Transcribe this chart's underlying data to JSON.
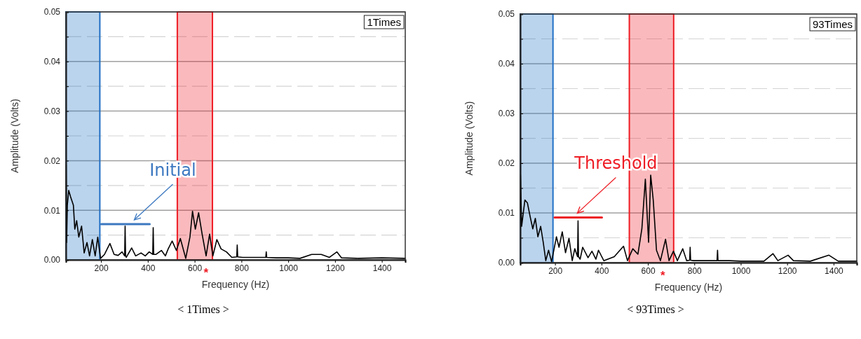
{
  "chart_data": [
    {
      "type": "line",
      "title": "< 1Times >",
      "subtitle": "1Times",
      "xlabel": "Frequency (Hz)",
      "ylabel": "Amplitude (Volts)",
      "xlim": [
        50,
        1500
      ],
      "ylim": [
        0,
        0.05
      ],
      "xticks": [
        200,
        400,
        600,
        800,
        1000,
        1200,
        1400
      ],
      "yticks": [
        {
          "value": 0,
          "label": "0.00"
        },
        {
          "value": 0.005,
          "label": null
        },
        {
          "value": 0.01,
          "label": "0.01"
        },
        {
          "value": 0.015,
          "label": null
        },
        {
          "value": 0.02,
          "label": "0.02"
        },
        {
          "value": 0.025,
          "label": null
        },
        {
          "value": 0.03,
          "label": "0.03"
        },
        {
          "value": 0.035,
          "label": null
        },
        {
          "value": 0.04,
          "label": "0.04"
        },
        {
          "value": 0.045,
          "label": null
        },
        {
          "value": 0.05,
          "label": "0.05"
        }
      ],
      "grid": "y",
      "series": [
        {
          "color": "#000000",
          "x": [
            50,
            51,
            53,
            56,
            62,
            70,
            82,
            88,
            96,
            105,
            117,
            128,
            140,
            151,
            163,
            175,
            186,
            198,
            215,
            238,
            256,
            273,
            290,
            301,
            303,
            305,
            308,
            331,
            348,
            371,
            389,
            406,
            421,
            423,
            425,
            435,
            458,
            475,
            487,
            504,
            522,
            539,
            562,
            580,
            591,
            603,
            617,
            632,
            649,
            664,
            678,
            695,
            713,
            736,
            759,
            780,
            782,
            784,
            805,
            904,
            906,
            908,
            950,
            1000,
            1050,
            1100,
            1141,
            1176,
            1208,
            1228,
            1300,
            1400,
            1500
          ],
          "values": [
            0.012,
            0.0191,
            0.0035,
            0.011,
            0.014,
            0.0127,
            0.011,
            0.0062,
            0.0079,
            0.0046,
            0.0068,
            0.0014,
            0.0035,
            0.0008,
            0.0041,
            0.0008,
            0.0046,
            0.0003,
            0.0011,
            0.0033,
            0.0011,
            0.0009,
            0.0016,
            0.0008,
            0.0068,
            0.0008,
            0.0005,
            0.0024,
            0.0008,
            0.0014,
            0.0008,
            0.0016,
            0.0011,
            0.0065,
            0.0011,
            0.0011,
            0.0019,
            0.0008,
            0.0022,
            0.0038,
            0.0019,
            0.0043,
            0.0003,
            0.0046,
            0.0098,
            0.0062,
            0.0095,
            0.0052,
            0.0008,
            0.0052,
            0.0008,
            0.0041,
            0.0022,
            0.0016,
            0.0005,
            0.0006,
            0.003,
            0.0006,
            0.0005,
            0.0005,
            0.0016,
            0.0005,
            0.0004,
            0.0004,
            0.0003,
            0.0011,
            0.0011,
            0.0005,
            0.0016,
            0.0004,
            0.0003,
            0.0004,
            0.0003
          ]
        },
        {
          "color": "#3c78c0",
          "x": [
            201,
            408
          ],
          "values": [
            0.0072,
            0.0072
          ]
        }
      ],
      "bands": [
        {
          "axis": "x",
          "from": 50,
          "to": 195,
          "color": "#1f6fc5"
        },
        {
          "axis": "x",
          "from": 526,
          "to": 676,
          "color": "#ee1c24"
        }
      ],
      "annotations": [
        {
          "text": "Initial",
          "x": 342,
          "y": 0.0072
        },
        "*"
      ]
    },
    {
      "type": "line",
      "title": "< 93Times >",
      "subtitle": "93Times",
      "xlabel": "Frequency (Hz)",
      "ylabel": "Amplitude (Volts)",
      "xlim": [
        50,
        1500
      ],
      "ylim": [
        0,
        0.05
      ],
      "xticks": [
        200,
        400,
        600,
        800,
        1000,
        1200,
        1400
      ],
      "yticks": [
        {
          "value": 0,
          "label": "0.00"
        },
        {
          "value": 0.005,
          "label": null
        },
        {
          "value": 0.01,
          "label": "0.01"
        },
        {
          "value": 0.015,
          "label": null
        },
        {
          "value": 0.02,
          "label": "0.02"
        },
        {
          "value": 0.025,
          "label": null
        },
        {
          "value": 0.03,
          "label": "0.03"
        },
        {
          "value": 0.035,
          "label": null
        },
        {
          "value": 0.04,
          "label": "0.04"
        },
        {
          "value": 0.045,
          "label": null
        },
        {
          "value": 0.05,
          "label": "0.05"
        }
      ],
      "grid": "y",
      "series": [
        {
          "color": "#000000",
          "x": [
            50,
            51,
            56,
            70,
            81,
            92,
            104,
            115,
            126,
            138,
            149,
            160,
            172,
            185,
            206,
            217,
            231,
            245,
            260,
            274,
            285,
            297,
            299,
            301,
            308,
            319,
            342,
            359,
            376,
            387,
            410,
            455,
            495,
            512,
            535,
            557,
            574,
            589,
            597,
            603,
            612,
            623,
            637,
            654,
            676,
            691,
            710,
            727,
            750,
            767,
            780,
            782,
            784,
            796,
            898,
            900,
            902,
            950,
            1000,
            1100,
            1139,
            1160,
            1204,
            1227,
            1300,
            1380,
            1420,
            1488,
            1500
          ],
          "values": [
            0.0105,
            0.0176,
            0.0073,
            0.0126,
            0.012,
            0.0094,
            0.0068,
            0.0089,
            0.0052,
            0.0073,
            0.0041,
            0.0004,
            0.0025,
            0.0002,
            0.0052,
            0.0031,
            0.0062,
            0.002,
            0.0049,
            0.0004,
            0.0028,
            0.0012,
            0.0084,
            0.0012,
            0.0007,
            0.0031,
            0.001,
            0.0023,
            0.0007,
            0.0025,
            0.0004,
            0.0012,
            0.0033,
            0.0004,
            0.0028,
            0.0017,
            0.0068,
            0.0168,
            0.0094,
            0.0041,
            0.0176,
            0.0126,
            0.0025,
            0.0004,
            0.0047,
            0.0004,
            0.0023,
            0.0004,
            0.0028,
            0.0004,
            0.0005,
            0.0031,
            0.0005,
            0.0004,
            0.0004,
            0.0025,
            0.0004,
            0.0004,
            0.0003,
            0.0003,
            0.0018,
            0.0004,
            0.0015,
            0.0004,
            0.0003,
            0.0015,
            0.0003,
            0.0003,
            0.0003
          ]
        },
        {
          "color": "#ee1c24",
          "x": [
            198,
            402
          ],
          "values": [
            0.0091,
            0.0091
          ]
        }
      ],
      "bands": [
        {
          "axis": "x",
          "from": 50,
          "to": 191,
          "color": "#1f6fc5"
        },
        {
          "axis": "x",
          "from": 520,
          "to": 711,
          "color": "#ee1c24"
        }
      ],
      "annotations": [
        {
          "text": "Threshold",
          "x": 296,
          "y": 0.0091
        },
        "*"
      ]
    }
  ]
}
